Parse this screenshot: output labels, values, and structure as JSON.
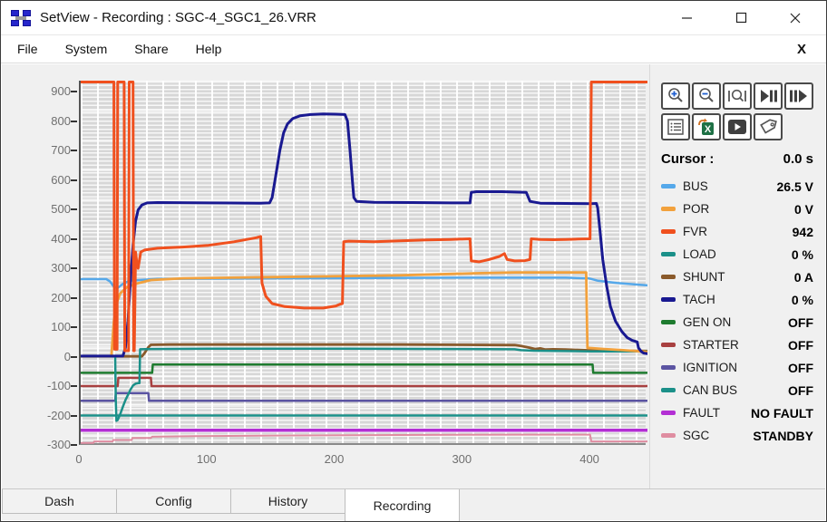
{
  "window": {
    "title": "SetView - Recording : SGC-4_SGC1_26.VRR"
  },
  "menu": {
    "items": [
      "File",
      "System",
      "Share",
      "Help"
    ],
    "close_label": "X"
  },
  "toolbar": {
    "buttons": [
      "zoom-in",
      "zoom-out",
      "zoom-reset",
      "step-back",
      "step-forward",
      "channel-list",
      "export-excel",
      "playback",
      "tag"
    ]
  },
  "cursor_panel": {
    "label": "Cursor :",
    "value": "0.0 s",
    "channels": [
      {
        "name": "BUS",
        "value": "26.5 V",
        "color": "#55a8ea"
      },
      {
        "name": "POR",
        "value": "0 V",
        "color": "#f2a13c"
      },
      {
        "name": "FVR",
        "value": "942",
        "color": "#f0501e"
      },
      {
        "name": "LOAD",
        "value": "0 %",
        "color": "#1b9089"
      },
      {
        "name": "SHUNT",
        "value": "0 A",
        "color": "#8a5a2b"
      },
      {
        "name": "TACH",
        "value": "0 %",
        "color": "#191991"
      },
      {
        "name": "GEN ON",
        "value": "OFF",
        "color": "#1e7b2f"
      },
      {
        "name": "STARTER",
        "value": "OFF",
        "color": "#a84040"
      },
      {
        "name": "IGNITION",
        "value": "OFF",
        "color": "#5b54a2"
      },
      {
        "name": "CAN BUS",
        "value": "OFF",
        "color": "#1b9089"
      },
      {
        "name": "FAULT",
        "value": "NO FAULT",
        "color": "#b32fd4"
      },
      {
        "name": "SGC",
        "value": "STANDBY",
        "color": "#df8da1"
      }
    ]
  },
  "tabs": [
    {
      "label": "Dash",
      "active": false
    },
    {
      "label": "Config",
      "active": false
    },
    {
      "label": "History",
      "active": false
    },
    {
      "label": "Recording",
      "active": true
    }
  ],
  "chart_data": {
    "type": "line",
    "x_range": [
      0,
      444
    ],
    "y_range": [
      -300,
      937
    ],
    "x_ticks": [
      0,
      100,
      200,
      300,
      400
    ],
    "y_ticks": [
      900,
      800,
      700,
      600,
      500,
      400,
      300,
      200,
      100,
      0,
      -100,
      -200,
      -300
    ],
    "grid": "fine gray mesh with white lines",
    "legend_position": "right panel",
    "series": [
      {
        "name": "CAN BUS",
        "color": "#1b9089",
        "width": 2.5,
        "points": [
          [
            0,
            -200
          ],
          [
            444,
            -200
          ]
        ]
      },
      {
        "name": "FAULT",
        "color": "#b32fd4",
        "width": 3.5,
        "points": [
          [
            0,
            -250
          ],
          [
            444,
            -250
          ]
        ]
      },
      {
        "name": "SGC",
        "color": "#df8da1",
        "width": 2,
        "points": [
          [
            0,
            -293
          ],
          [
            10,
            -293
          ],
          [
            10.5,
            -288
          ],
          [
            25,
            -288
          ],
          [
            25.5,
            -283
          ],
          [
            40,
            -283
          ],
          [
            40.5,
            -276
          ],
          [
            55,
            -276
          ],
          [
            56,
            -272
          ],
          [
            90,
            -270
          ],
          [
            150,
            -268
          ],
          [
            250,
            -266
          ],
          [
            350,
            -265
          ],
          [
            399,
            -265
          ],
          [
            400,
            -288
          ],
          [
            444,
            -288
          ]
        ]
      },
      {
        "name": "IGNITION",
        "color": "#5b54a2",
        "width": 2.5,
        "points": [
          [
            0,
            -150
          ],
          [
            27,
            -150
          ],
          [
            27.5,
            -124
          ],
          [
            53,
            -124
          ],
          [
            53.5,
            -150
          ],
          [
            444,
            -150
          ]
        ]
      },
      {
        "name": "STARTER",
        "color": "#a84040",
        "width": 2.5,
        "points": [
          [
            0,
            -100
          ],
          [
            29,
            -100
          ],
          [
            29.5,
            -72
          ],
          [
            55,
            -72
          ],
          [
            55.5,
            -100
          ],
          [
            444,
            -100
          ]
        ]
      },
      {
        "name": "GEN ON",
        "color": "#1e7b2f",
        "width": 2.5,
        "points": [
          [
            0,
            -55
          ],
          [
            56,
            -55
          ],
          [
            56.5,
            -27
          ],
          [
            401,
            -27
          ],
          [
            401.5,
            -55
          ],
          [
            444,
            -55
          ]
        ]
      },
      {
        "name": "SHUNT",
        "color": "#8a5a2b",
        "width": 2.8,
        "points": [
          [
            0,
            1
          ],
          [
            48,
            1
          ],
          [
            50,
            12
          ],
          [
            53,
            32
          ],
          [
            55,
            40
          ],
          [
            70,
            41
          ],
          [
            150,
            41
          ],
          [
            250,
            41
          ],
          [
            300,
            40
          ],
          [
            340,
            39
          ],
          [
            345,
            36
          ],
          [
            352,
            30
          ],
          [
            356,
            26
          ],
          [
            360,
            28
          ],
          [
            364,
            24
          ],
          [
            370,
            25
          ],
          [
            380,
            24
          ],
          [
            395,
            22
          ],
          [
            400,
            21
          ],
          [
            420,
            20
          ],
          [
            444,
            19
          ]
        ]
      },
      {
        "name": "LOAD",
        "color": "#1b9089",
        "width": 2.5,
        "points": [
          [
            0,
            1
          ],
          [
            27,
            1
          ],
          [
            27.5,
            -150
          ],
          [
            28,
            -218
          ],
          [
            29,
            -215
          ],
          [
            31,
            -195
          ],
          [
            33,
            -170
          ],
          [
            35,
            -148
          ],
          [
            37,
            -130
          ],
          [
            39,
            -112
          ],
          [
            41,
            -98
          ],
          [
            43,
            -92
          ],
          [
            45,
            -90
          ],
          [
            46,
            -90
          ],
          [
            46.5,
            25
          ],
          [
            55,
            26
          ],
          [
            100,
            27
          ],
          [
            200,
            27
          ],
          [
            300,
            26
          ],
          [
            340,
            25
          ],
          [
            345,
            22
          ],
          [
            355,
            20
          ],
          [
            370,
            19
          ],
          [
            400,
            18
          ],
          [
            444,
            18
          ]
        ]
      },
      {
        "name": "BUS",
        "color": "#55a8ea",
        "width": 2.5,
        "points": [
          [
            0,
            263
          ],
          [
            20,
            263
          ],
          [
            23,
            255
          ],
          [
            26,
            237
          ],
          [
            29,
            233
          ],
          [
            33,
            247
          ],
          [
            38,
            258
          ],
          [
            60,
            264
          ],
          [
            150,
            266
          ],
          [
            300,
            268
          ],
          [
            380,
            268
          ],
          [
            398,
            266
          ],
          [
            405,
            258
          ],
          [
            420,
            250
          ],
          [
            444,
            242
          ]
        ]
      },
      {
        "name": "POR",
        "color": "#f2a13c",
        "width": 2.8,
        "points": [
          [
            0,
            2
          ],
          [
            24,
            2
          ],
          [
            26,
            120
          ],
          [
            28,
            180
          ],
          [
            31,
            215
          ],
          [
            36,
            235
          ],
          [
            44,
            248
          ],
          [
            55,
            260
          ],
          [
            80,
            266
          ],
          [
            150,
            270
          ],
          [
            250,
            276
          ],
          [
            310,
            283
          ],
          [
            340,
            286
          ],
          [
            396,
            286
          ],
          [
            397,
            30
          ],
          [
            410,
            26
          ],
          [
            425,
            22
          ],
          [
            444,
            16
          ]
        ]
      },
      {
        "name": "TACH",
        "color": "#191991",
        "width": 3,
        "points": [
          [
            0,
            2
          ],
          [
            33,
            2
          ],
          [
            35,
            30
          ],
          [
            37,
            120
          ],
          [
            39,
            260
          ],
          [
            41,
            380
          ],
          [
            43,
            460
          ],
          [
            45,
            498
          ],
          [
            48,
            515
          ],
          [
            52,
            522
          ],
          [
            60,
            523
          ],
          [
            100,
            522
          ],
          [
            140,
            521
          ],
          [
            148,
            522
          ],
          [
            150,
            540
          ],
          [
            153,
            620
          ],
          [
            156,
            700
          ],
          [
            159,
            760
          ],
          [
            162,
            790
          ],
          [
            166,
            808
          ],
          [
            172,
            818
          ],
          [
            180,
            822
          ],
          [
            190,
            824
          ],
          [
            200,
            823
          ],
          [
            207,
            822
          ],
          [
            209,
            800
          ],
          [
            211,
            700
          ],
          [
            213,
            590
          ],
          [
            214,
            540
          ],
          [
            216,
            527
          ],
          [
            230,
            524
          ],
          [
            260,
            523
          ],
          [
            290,
            522
          ],
          [
            305,
            522
          ],
          [
            306,
            558
          ],
          [
            310,
            560
          ],
          [
            330,
            560
          ],
          [
            349,
            558
          ],
          [
            352,
            527
          ],
          [
            360,
            521
          ],
          [
            380,
            520
          ],
          [
            400,
            519
          ],
          [
            404,
            520
          ],
          [
            405,
            505
          ],
          [
            407,
            420
          ],
          [
            409,
            330
          ],
          [
            412,
            240
          ],
          [
            415,
            170
          ],
          [
            419,
            120
          ],
          [
            424,
            85
          ],
          [
            428,
            65
          ],
          [
            432,
            55
          ],
          [
            436,
            50
          ],
          [
            437,
            30
          ],
          [
            439,
            18
          ],
          [
            441,
            12
          ],
          [
            444,
            10
          ]
        ]
      },
      {
        "name": "FVR",
        "color": "#f0501e",
        "width": 3,
        "points": [
          [
            0,
            942
          ],
          [
            26,
            942
          ],
          [
            26.5,
            25
          ],
          [
            28.5,
            25
          ],
          [
            29,
            942
          ],
          [
            34,
            942
          ],
          [
            34.5,
            20
          ],
          [
            37.5,
            20
          ],
          [
            38,
            942
          ],
          [
            41,
            942
          ],
          [
            41.5,
            20
          ],
          [
            42,
            20
          ],
          [
            43,
            355
          ],
          [
            44,
            318
          ],
          [
            45,
            300
          ],
          [
            47,
            355
          ],
          [
            50,
            362
          ],
          [
            60,
            368
          ],
          [
            80,
            372
          ],
          [
            100,
            378
          ],
          [
            120,
            390
          ],
          [
            138,
            404
          ],
          [
            141,
            408
          ],
          [
            142,
            250
          ],
          [
            145,
            205
          ],
          [
            150,
            180
          ],
          [
            160,
            170
          ],
          [
            175,
            165
          ],
          [
            190,
            165
          ],
          [
            200,
            172
          ],
          [
            203,
            178
          ],
          [
            205,
            180
          ],
          [
            206,
            390
          ],
          [
            210,
            392
          ],
          [
            230,
            390
          ],
          [
            250,
            393
          ],
          [
            270,
            396
          ],
          [
            290,
            398
          ],
          [
            305,
            400
          ],
          [
            306,
            325
          ],
          [
            312,
            322
          ],
          [
            320,
            330
          ],
          [
            328,
            340
          ],
          [
            332,
            350
          ],
          [
            334,
            330
          ],
          [
            340,
            325
          ],
          [
            348,
            326
          ],
          [
            352,
            330
          ],
          [
            353,
            400
          ],
          [
            360,
            398
          ],
          [
            370,
            397
          ],
          [
            380,
            398
          ],
          [
            390,
            399
          ],
          [
            399,
            400
          ],
          [
            400,
            942
          ],
          [
            444,
            942
          ]
        ]
      }
    ]
  }
}
